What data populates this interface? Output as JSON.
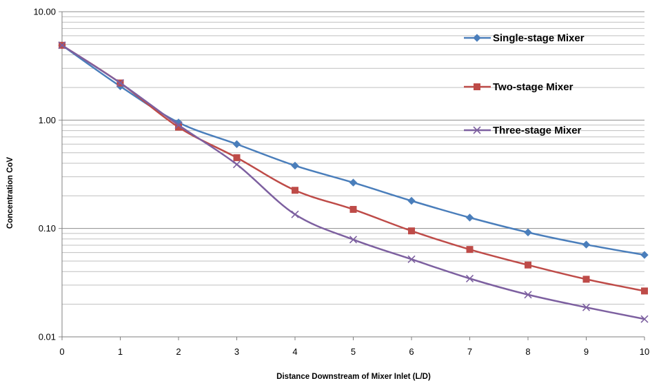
{
  "chart_data": {
    "type": "line",
    "title": "",
    "xlabel": "Distance Downstream of Mixer Inlet (L/D)",
    "ylabel": "Concentration CoV",
    "y_scale": "log",
    "xlim": [
      0,
      10
    ],
    "ylim": [
      0.01,
      10
    ],
    "x_ticks": [
      "0",
      "1",
      "2",
      "3",
      "4",
      "5",
      "6",
      "7",
      "8",
      "9",
      "10"
    ],
    "y_ticks": [
      {
        "value": 0.01,
        "label": "0.01"
      },
      {
        "value": 0.1,
        "label": "0.10"
      },
      {
        "value": 1,
        "label": "1.00"
      },
      {
        "value": 10,
        "label": "10.00"
      }
    ],
    "grid": true,
    "legend_position": "right",
    "x": [
      0,
      1,
      2,
      3,
      4,
      5,
      6,
      7,
      8,
      9,
      10
    ],
    "series": [
      {
        "name": "Single-stage Mixer",
        "color": "#4a7ebb",
        "marker": "diamond",
        "values": [
          4.9,
          2.05,
          0.95,
          0.6,
          0.38,
          0.265,
          0.18,
          0.126,
          0.092,
          0.071,
          0.057
        ]
      },
      {
        "name": "Two-stage Mixer",
        "color": "#be4b48",
        "marker": "square",
        "values": [
          4.9,
          2.2,
          0.86,
          0.45,
          0.225,
          0.15,
          0.095,
          0.064,
          0.046,
          0.034,
          0.0265
        ]
      },
      {
        "name": "Three-stage Mixer",
        "color": "#7d60a0",
        "marker": "x",
        "values": [
          4.9,
          2.2,
          0.9,
          0.39,
          0.135,
          0.079,
          0.052,
          0.0345,
          0.0245,
          0.0187,
          0.0146
        ]
      }
    ]
  }
}
